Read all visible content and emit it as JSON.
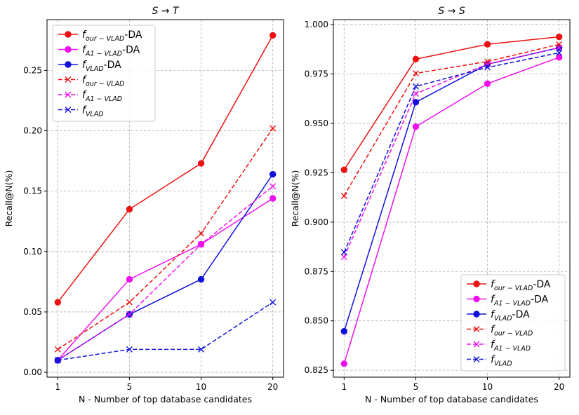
{
  "chart_data": [
    {
      "type": "line",
      "title": "S → T",
      "xlabel": "N - Number of top database candidates",
      "ylabel": "Recall@N(%)",
      "categories": [
        "1",
        "5",
        "10",
        "20"
      ],
      "ylim": [
        -0.004,
        0.292
      ],
      "yticks": [
        "0.00",
        "0.05",
        "0.10",
        "0.15",
        "0.20",
        "0.25"
      ],
      "yticks_values": [
        0.0,
        0.05,
        0.1,
        0.15,
        0.2,
        0.25
      ],
      "grid": true,
      "legend_position": "top-left",
      "series": [
        {
          "legend_main": "f",
          "legend_sub": "our − VLAD",
          "legend_suffix": "-DA",
          "color": "#ee1111",
          "dash": "solid",
          "marker": "circle",
          "values": [
            0.058,
            0.135,
            0.173,
            0.279
          ]
        },
        {
          "legend_main": "f",
          "legend_sub": "A1 − VLAD",
          "legend_suffix": "-DA",
          "color": "#ee11ee",
          "dash": "solid",
          "marker": "circle",
          "values": [
            0.01,
            0.077,
            0.106,
            0.144
          ]
        },
        {
          "legend_main": "f",
          "legend_sub": "VLAD",
          "legend_suffix": "-DA",
          "color": "#1111dd",
          "dash": "solid",
          "marker": "circle",
          "values": [
            0.01,
            0.048,
            0.077,
            0.164
          ]
        },
        {
          "legend_main": "f",
          "legend_sub": "our − VLAD",
          "legend_suffix": "",
          "color": "#ee1111",
          "dash": "dashed",
          "marker": "x",
          "values": [
            0.019,
            0.058,
            0.115,
            0.202
          ]
        },
        {
          "legend_main": "f",
          "legend_sub": "A1 − VLAD",
          "legend_suffix": "",
          "color": "#ee11ee",
          "dash": "dashed",
          "marker": "x",
          "values": [
            0.01,
            0.048,
            0.106,
            0.154
          ]
        },
        {
          "legend_main": "f",
          "legend_sub": "VLAD",
          "legend_suffix": "",
          "color": "#1111dd",
          "dash": "dashed",
          "marker": "x",
          "values": [
            0.01,
            0.019,
            0.019,
            0.058
          ]
        }
      ]
    },
    {
      "type": "line",
      "title": "S → S",
      "xlabel": "N - Number of top database candidates",
      "ylabel": "Recall@N(%)",
      "categories": [
        "1",
        "5",
        "10",
        "20"
      ],
      "ylim": [
        0.8215,
        1.0025
      ],
      "yticks": [
        "0.825",
        "0.850",
        "0.875",
        "0.900",
        "0.925",
        "0.950",
        "0.975",
        "1.000"
      ],
      "yticks_values": [
        0.825,
        0.85,
        0.875,
        0.9,
        0.925,
        0.95,
        0.975,
        1.0
      ],
      "grid": true,
      "legend_position": "bottom-right",
      "series": [
        {
          "legend_main": "f",
          "legend_sub": "our − VLAD",
          "legend_suffix": "-DA",
          "color": "#ee1111",
          "dash": "solid",
          "marker": "circle",
          "values": [
            0.9265,
            0.9825,
            0.99,
            0.9938
          ]
        },
        {
          "legend_main": "f",
          "legend_sub": "A1 − VLAD",
          "legend_suffix": "-DA",
          "color": "#ee11ee",
          "dash": "solid",
          "marker": "circle",
          "values": [
            0.8283,
            0.9483,
            0.9701,
            0.9834
          ]
        },
        {
          "legend_main": "f",
          "legend_sub": "VLAD",
          "legend_suffix": "-DA",
          "color": "#1111dd",
          "dash": "solid",
          "marker": "circle",
          "values": [
            0.8447,
            0.9607,
            0.9799,
            0.9883
          ]
        },
        {
          "legend_main": "f",
          "legend_sub": "our − VLAD",
          "legend_suffix": "",
          "color": "#ee1111",
          "dash": "dashed",
          "marker": "x",
          "values": [
            0.9133,
            0.9753,
            0.9813,
            0.99
          ]
        },
        {
          "legend_main": "f",
          "legend_sub": "A1 − VLAD",
          "legend_suffix": "",
          "color": "#ee11ee",
          "dash": "dashed",
          "marker": "x",
          "values": [
            0.8823,
            0.965,
            0.98,
            0.9883
          ]
        },
        {
          "legend_main": "f",
          "legend_sub": "VLAD",
          "legend_suffix": "",
          "color": "#1111dd",
          "dash": "dashed",
          "marker": "x",
          "values": [
            0.8847,
            0.9687,
            0.9783,
            0.9857
          ]
        }
      ]
    }
  ]
}
